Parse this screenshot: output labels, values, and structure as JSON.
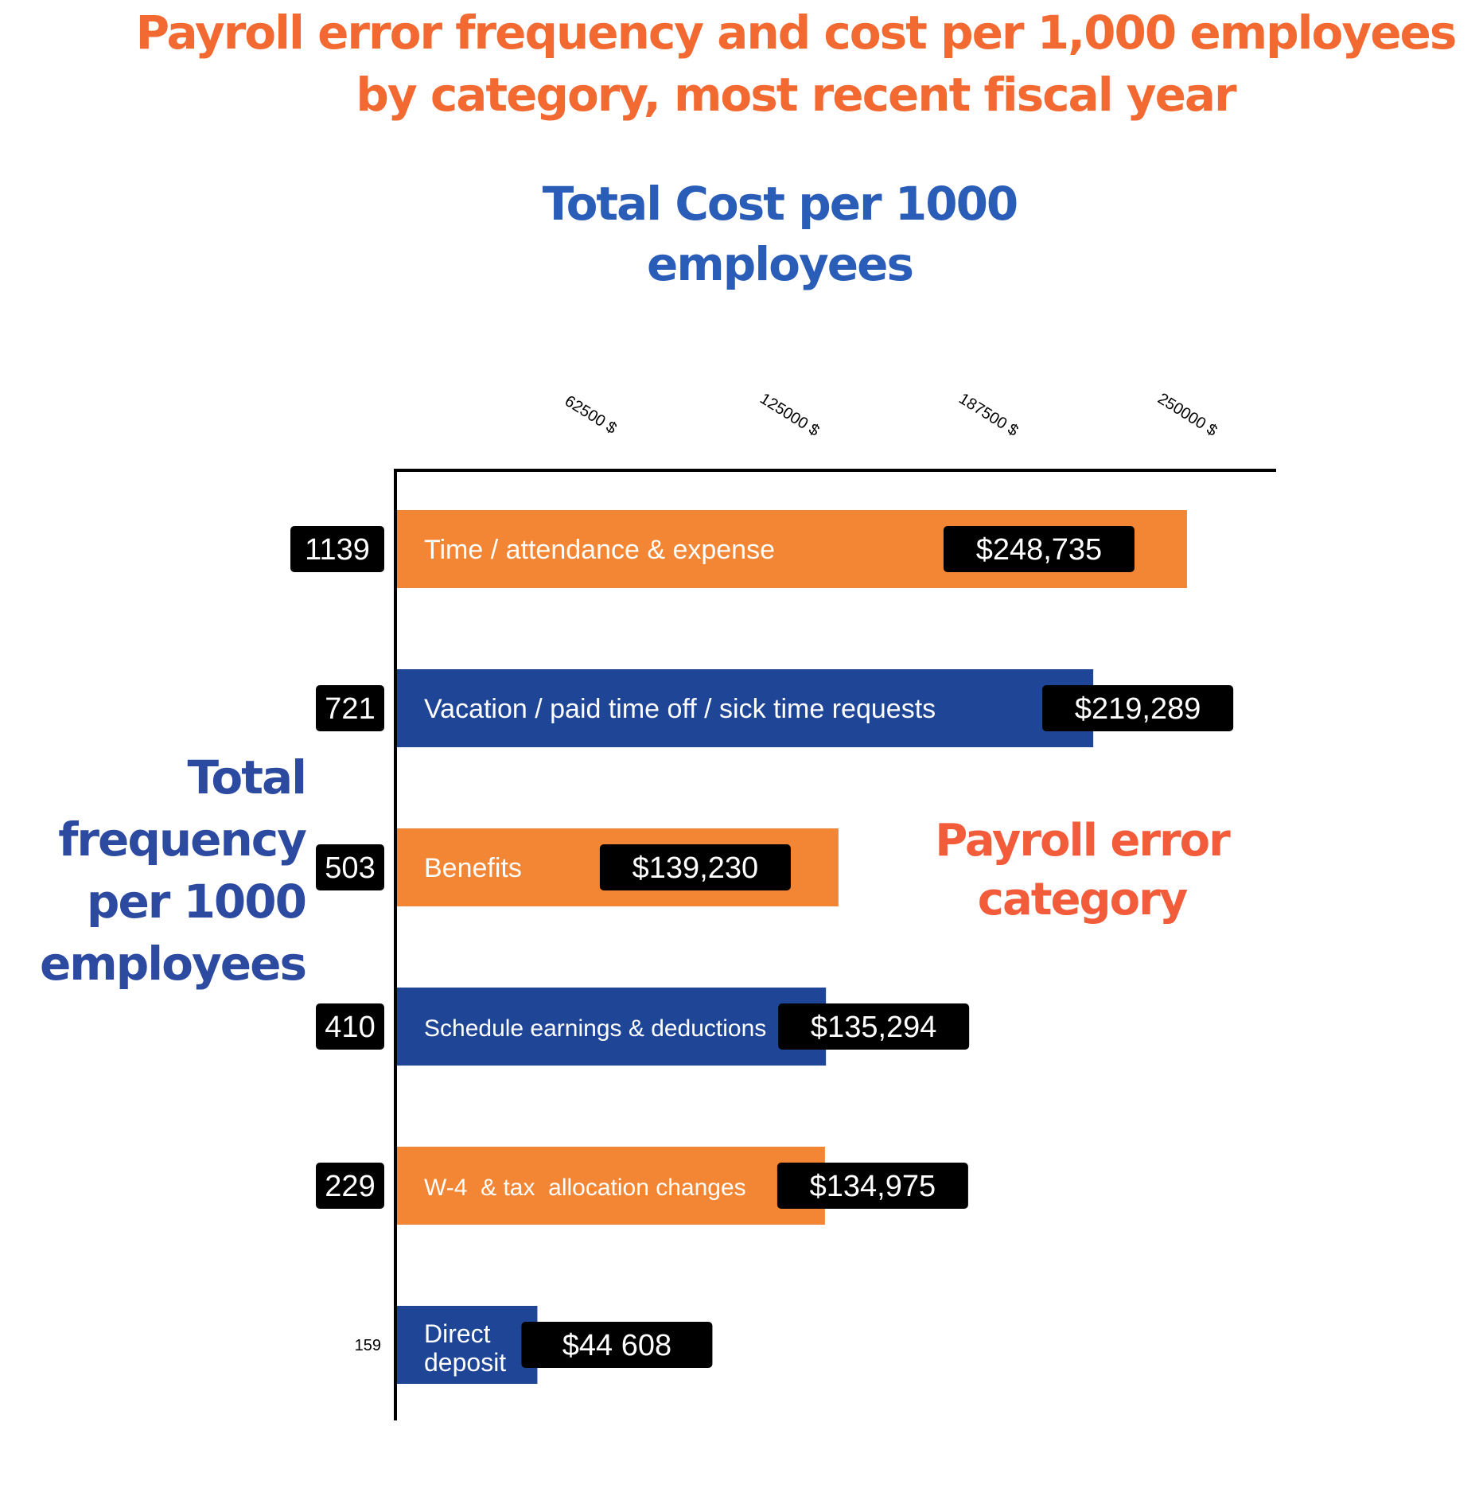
{
  "title": "Payroll error frequency and cost per 1,000 employees by category, most recent fiscal year",
  "chart_data": {
    "type": "bar",
    "orientation": "horizontal",
    "title": "Payroll error frequency and cost per 1,000 employees by category, most recent fiscal year",
    "xlabel": "Total Cost per 1000 employees",
    "ylabel": "Total frequency per 1000 employees",
    "category_label": "Payroll error category",
    "x_ticks": [
      "62500 $",
      "125000 $",
      "187500 $",
      "250000 $"
    ],
    "x_tick_values": [
      62500,
      125000,
      187500,
      250000
    ],
    "xlim": [
      0,
      280000
    ],
    "categories": [
      "Time / attendance & expense",
      "Vacation / paid time off / sick time requests",
      "Benefits",
      "Schedule earnings & deductions",
      "W-4  & tax  allocation changes",
      "Direct deposit"
    ],
    "cost_values": [
      248735,
      219289,
      139230,
      135294,
      134975,
      44608
    ],
    "cost_labels": [
      "$248,735",
      "$219,289",
      "$139,230",
      "$135,294",
      "$134,975",
      "$44 608"
    ],
    "frequency_values": [
      1139,
      721,
      503,
      410,
      229,
      159
    ],
    "frequency_labels": [
      "1139",
      "721",
      "503",
      "410",
      "229",
      "159"
    ],
    "colors": {
      "orange": "#f28634",
      "blue": "#1f4596",
      "label_bg": "#000000",
      "axis": "#000000"
    },
    "bar_colors": [
      "orange",
      "blue",
      "orange",
      "blue",
      "orange",
      "blue"
    ],
    "grid": false
  }
}
